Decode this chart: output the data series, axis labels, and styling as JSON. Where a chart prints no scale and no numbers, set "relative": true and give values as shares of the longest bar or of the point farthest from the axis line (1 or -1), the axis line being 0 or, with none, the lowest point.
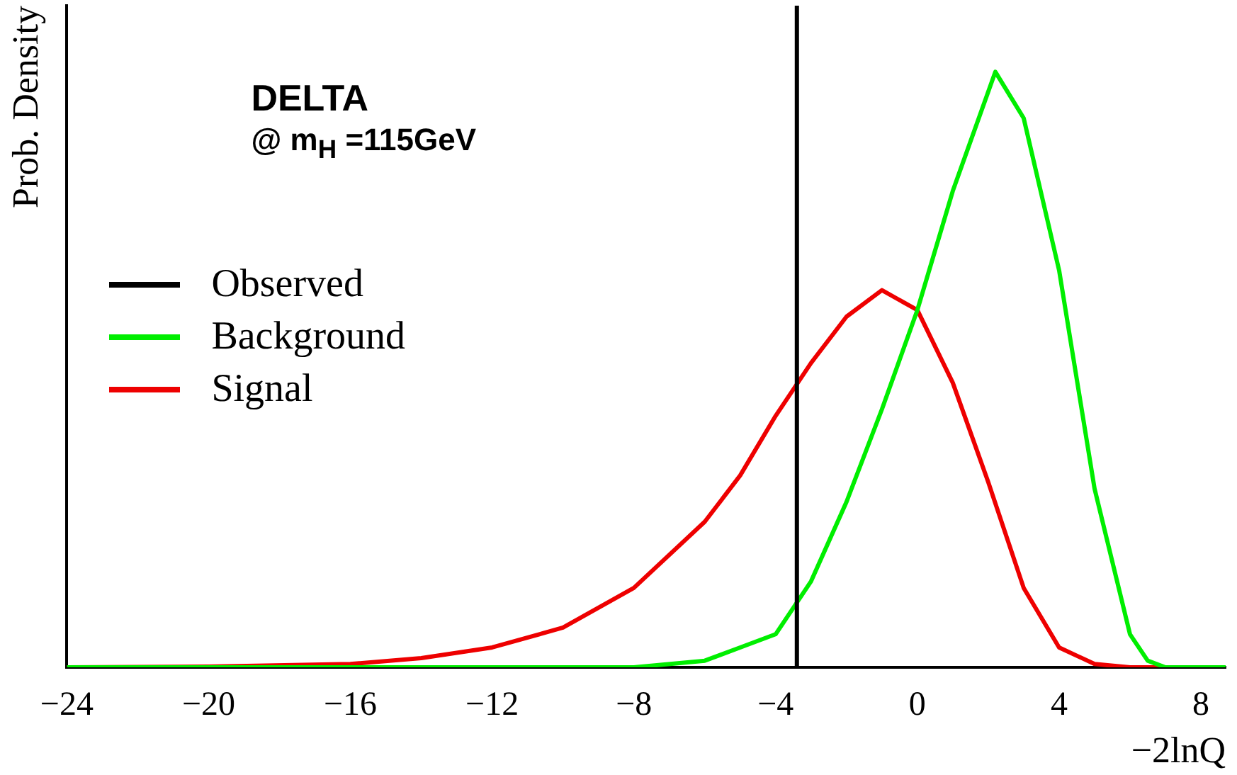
{
  "chart_data": {
    "type": "line",
    "relative": true,
    "xlabel": "−2lnQ",
    "ylabel": "Prob. Density",
    "annotations": [
      "DELTA",
      "@ m$_{H}$ =115GeV"
    ],
    "xlim": [
      -24,
      8.7
    ],
    "xticks": [
      -24,
      -20,
      -16,
      -12,
      -8,
      -4,
      0,
      4,
      8
    ],
    "legend": "left",
    "marker": "none",
    "line_style": "solid",
    "series": [
      {
        "name": "Observed",
        "color": "#000000",
        "x": [
          -3.4,
          -3.4
        ],
        "values": [
          0,
          1
        ]
      },
      {
        "name": "Background",
        "color": "#00ee00",
        "x": [
          -24,
          -8,
          -6,
          -5,
          -4,
          -3,
          -2,
          -1,
          0,
          1,
          2,
          2.2,
          3,
          4,
          5,
          6,
          6.5,
          7,
          8.7
        ],
        "values": [
          0,
          0,
          0.01,
          0.03,
          0.05,
          0.13,
          0.25,
          0.39,
          0.54,
          0.72,
          0.87,
          0.9,
          0.83,
          0.6,
          0.27,
          0.05,
          0.01,
          0,
          0
        ]
      },
      {
        "name": "Signal",
        "color": "#ee0000",
        "x": [
          -24,
          -20,
          -16,
          -14,
          -12,
          -10,
          -8,
          -6,
          -5,
          -4,
          -3,
          -2,
          -1,
          0,
          1,
          2,
          3,
          4,
          5,
          6,
          8.7
        ],
        "values": [
          0,
          0.001,
          0.005,
          0.014,
          0.03,
          0.06,
          0.12,
          0.22,
          0.29,
          0.38,
          0.46,
          0.53,
          0.57,
          0.54,
          0.43,
          0.28,
          0.12,
          0.03,
          0.005,
          0,
          0
        ]
      }
    ]
  }
}
